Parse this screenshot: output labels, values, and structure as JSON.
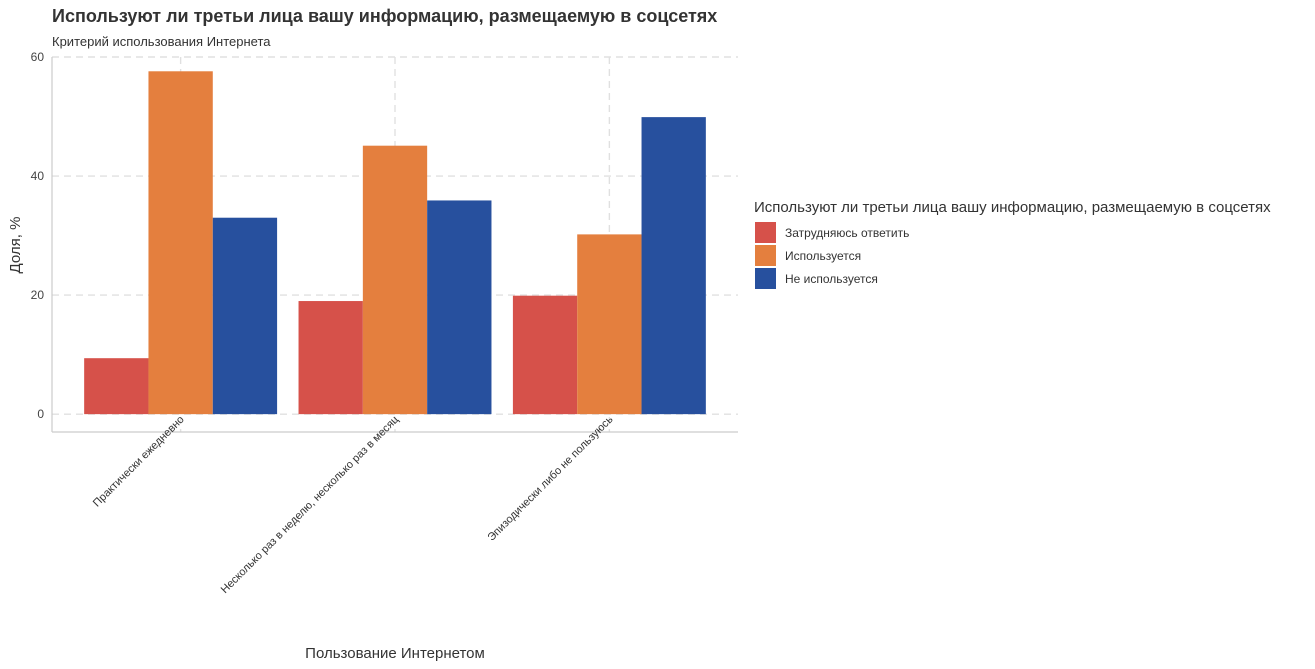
{
  "chart_data": {
    "type": "bar",
    "title": "Используют ли третьи лица вашу информацию, размещаемую в соцсетях",
    "subtitle": "Критерий использования Интернета",
    "xlabel": "Пользование Интернетом",
    "ylabel": "Доля, %",
    "ylim": [
      -3,
      60
    ],
    "yticks": [
      0,
      20,
      40,
      60
    ],
    "grid": true,
    "legend_position": "right",
    "legend_title": "Используют ли третьи лица вашу информацию, размещаемую в соцсетях",
    "categories": [
      "Практически ежедневно",
      "Несколько раз в неделю, несколько раз в месяц",
      "Эпизодически либо не пользуюсь"
    ],
    "series": [
      {
        "name": "Затрудняюсь ответить",
        "color": "#d6514a",
        "values": [
          9.4,
          19.0,
          19.9
        ]
      },
      {
        "name": "Используется",
        "color": "#e47f3e",
        "values": [
          57.6,
          45.1,
          30.2
        ]
      },
      {
        "name": "Не используется",
        "color": "#27509e",
        "values": [
          33.0,
          35.9,
          49.9
        ]
      }
    ]
  }
}
